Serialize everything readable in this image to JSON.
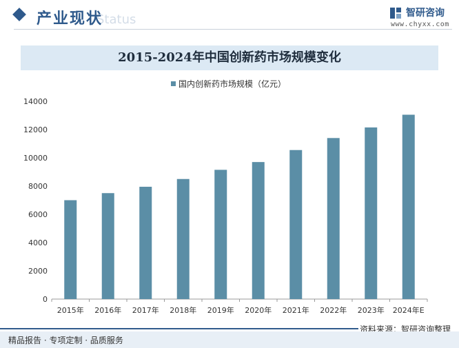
{
  "header": {
    "section_title": "产业现状",
    "section_watermark": "Status",
    "logo_name": "智研咨询",
    "logo_url": "www.chyxx.com"
  },
  "footer": {
    "left": "精品报告 · 专项定制 · 品质服务",
    "source": "资料来源：智研咨询整理"
  },
  "colors": {
    "bar": "#5b8ea6",
    "accent": "#2f5a8c",
    "title_band": "#dce9f4"
  },
  "chart_data": {
    "type": "bar",
    "title": "2015-2024年中国创新药市场规模变化",
    "categories": [
      "2015年",
      "2016年",
      "2017年",
      "2018年",
      "2019年",
      "2020年",
      "2021年",
      "2022年",
      "2023年",
      "2024年E"
    ],
    "series": [
      {
        "name": "国内创新药市场规模（亿元）",
        "values": [
          7000,
          7500,
          7950,
          8500,
          9150,
          9700,
          10550,
          11400,
          12150,
          13050
        ]
      }
    ],
    "ylim": [
      0,
      14000
    ],
    "yticks": [
      0,
      2000,
      4000,
      6000,
      8000,
      10000,
      12000,
      14000
    ],
    "grid": false,
    "legend_position": "top-center"
  }
}
